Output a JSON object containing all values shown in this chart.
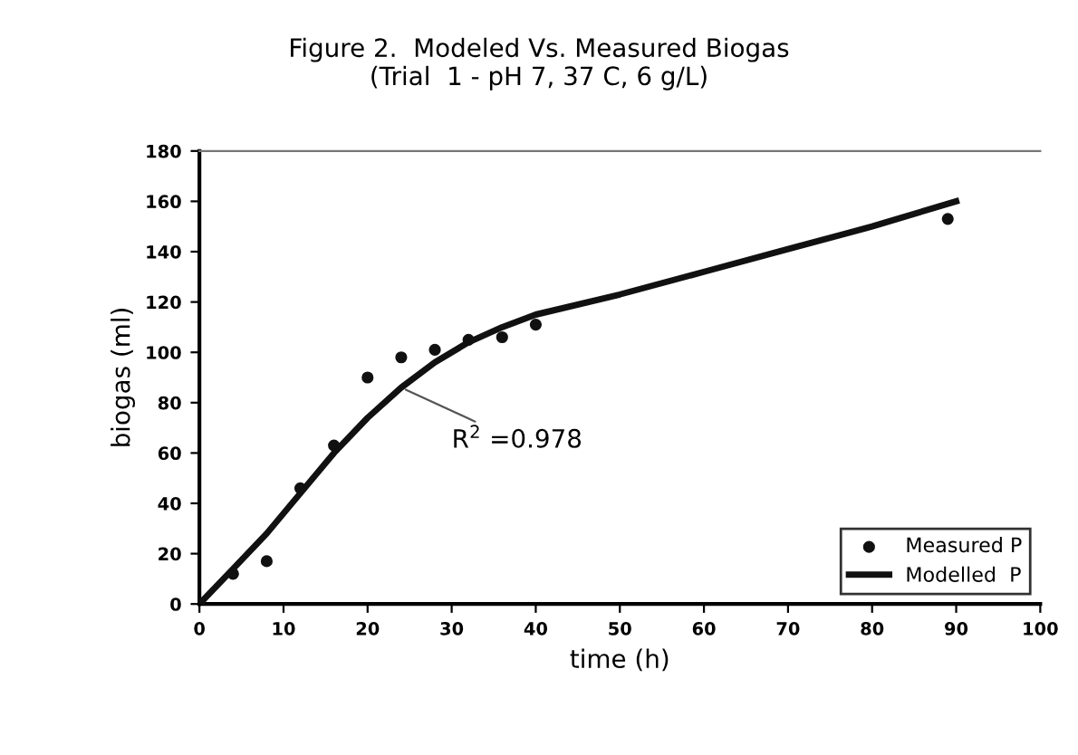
{
  "chart_data": {
    "type": "scatter",
    "title": "Figure 2.  Modeled Vs. Measured Biogas\n(Trial  1 - pH 7, 37 C, 6 g/L)",
    "xlabel": "time (h)",
    "ylabel": "biogas (ml)",
    "series": [
      {
        "name": "Measured P",
        "color": "#111111",
        "marker": "circle",
        "x": [
          0,
          4,
          8,
          12,
          16,
          20,
          24,
          28,
          32,
          36,
          40,
          89
        ],
        "values": [
          0,
          12,
          17,
          46,
          63,
          90,
          98,
          101,
          105,
          106,
          111,
          153
        ]
      },
      {
        "name": "Modelled  P",
        "type": "line",
        "color": "#111111",
        "marker": "none",
        "line_style": "solid",
        "x": [
          0,
          4,
          8,
          12,
          16,
          20,
          24,
          28,
          32,
          36,
          40,
          50,
          60,
          70,
          80,
          90
        ],
        "values": [
          0,
          14,
          28,
          44,
          60,
          74,
          86,
          96,
          104,
          110,
          115,
          123,
          132,
          141,
          150,
          160
        ]
      }
    ],
    "annotations": [
      {
        "text": "R$^{2}$ =0.978",
        "x": 24,
        "y": 86
      }
    ],
    "xlim": [
      0,
      100
    ],
    "xticks": [
      0,
      10,
      20,
      30,
      40,
      50,
      60,
      70,
      80,
      90,
      100
    ],
    "ylim": [
      0,
      180
    ],
    "yticks": [
      0,
      20,
      40,
      60,
      80,
      100,
      120,
      140,
      160,
      180
    ],
    "grid": false,
    "legend": "bottom right"
  }
}
